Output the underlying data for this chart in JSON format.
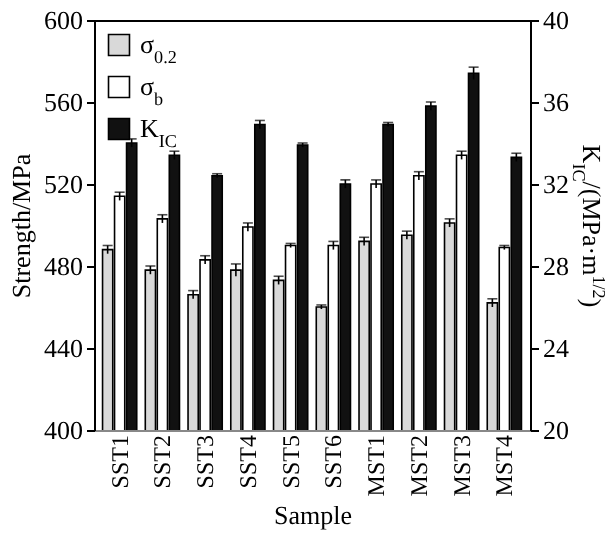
{
  "chart_data": {
    "type": "bar",
    "xlabel": "Sample",
    "ylabel": "Strength/MPa",
    "y2label": "K$_{IC}$/(MPa·m$^{1/2}$)",
    "categories": [
      "SST1",
      "SST2",
      "SST3",
      "SST4",
      "SST5",
      "SST6",
      "MST1",
      "MST2",
      "MST3",
      "MST4"
    ],
    "series": [
      {
        "name": "σ$_{0.2}$",
        "color": "#d9d9d9",
        "values": [
          488,
          478,
          466,
          478,
          473,
          460,
          492,
          495,
          501,
          462
        ],
        "errors": [
          2,
          2,
          2,
          3,
          2,
          1,
          2,
          2,
          2,
          2
        ]
      },
      {
        "name": "σ$_{b}$",
        "color": "#ffffff",
        "values": [
          514,
          503,
          483,
          499,
          490,
          490,
          520,
          524,
          534,
          489
        ],
        "errors": [
          2,
          2,
          2,
          2,
          1,
          2,
          2,
          2,
          2,
          1
        ]
      },
      {
        "name": "K$_{IC}$",
        "color": "#111111",
        "axis": "y2",
        "values": [
          34.0,
          33.4,
          32.4,
          34.9,
          33.9,
          32.0,
          34.9,
          35.8,
          37.4,
          33.3
        ],
        "errors": [
          0.2,
          0.2,
          0.1,
          0.2,
          0.1,
          0.2,
          0.1,
          0.2,
          0.3,
          0.2
        ]
      }
    ],
    "ylim": [
      400,
      600
    ],
    "yticks": [
      400,
      440,
      480,
      520,
      560,
      600
    ],
    "y2lim": [
      20,
      40
    ],
    "y2ticks": [
      20,
      24,
      28,
      32,
      36,
      40
    ],
    "legend": "top left",
    "grid": false
  }
}
